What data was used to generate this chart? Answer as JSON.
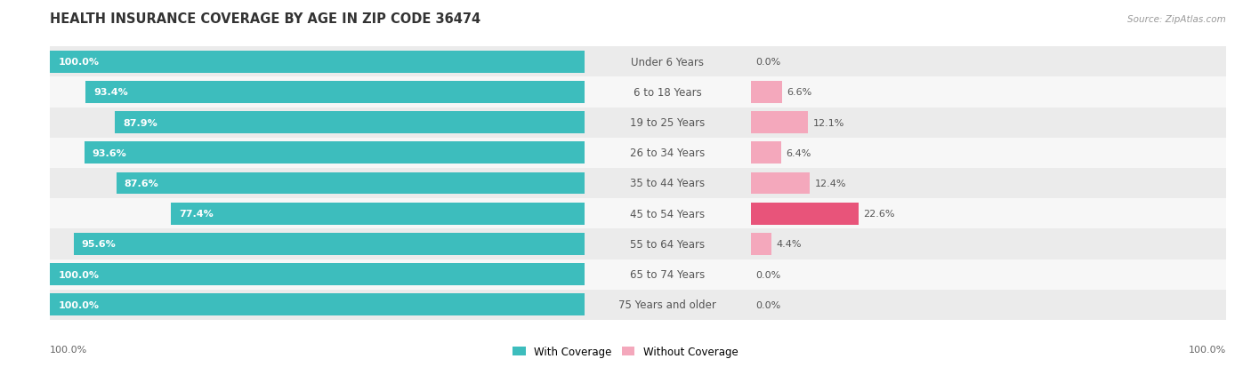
{
  "title": "HEALTH INSURANCE COVERAGE BY AGE IN ZIP CODE 36474",
  "source": "Source: ZipAtlas.com",
  "categories": [
    "Under 6 Years",
    "6 to 18 Years",
    "19 to 25 Years",
    "26 to 34 Years",
    "35 to 44 Years",
    "45 to 54 Years",
    "55 to 64 Years",
    "65 to 74 Years",
    "75 Years and older"
  ],
  "with_coverage": [
    100.0,
    93.4,
    87.9,
    93.6,
    87.6,
    77.4,
    95.6,
    100.0,
    100.0
  ],
  "without_coverage": [
    0.0,
    6.6,
    12.1,
    6.4,
    12.4,
    22.6,
    4.4,
    0.0,
    0.0
  ],
  "with_color": "#3DBDBD",
  "without_color_dark": "#E8547A",
  "without_color_light": "#F4A8BC",
  "row_bg_even": "#EBEBEB",
  "row_bg_odd": "#F7F7F7",
  "bar_max": 100.0,
  "legend_with": "With Coverage",
  "legend_without": "Without Coverage",
  "title_fontsize": 10.5,
  "label_fontsize": 8.5,
  "bar_label_fontsize": 8.0,
  "axis_label_fontsize": 8.0,
  "bottom_left_label": "100.0%",
  "bottom_right_label": "100.0%"
}
